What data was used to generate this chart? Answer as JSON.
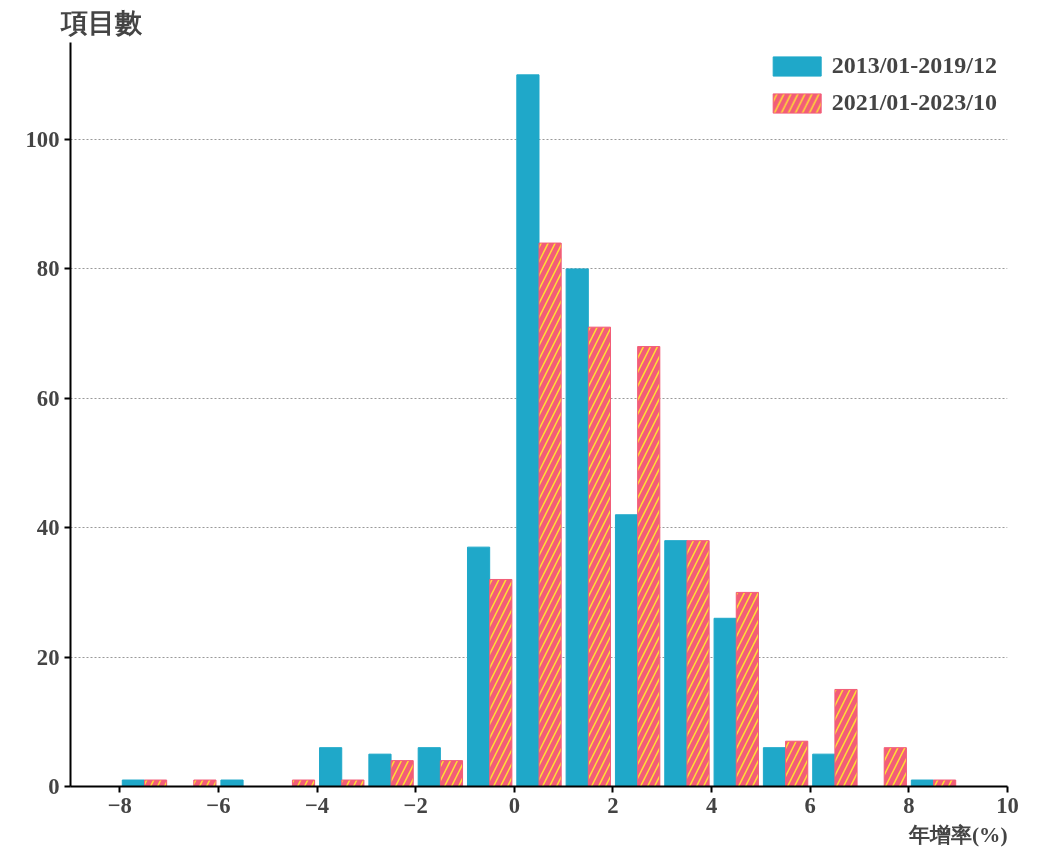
{
  "chart_data": {
    "type": "histogram",
    "xlabel": "年增率(%)",
    "ylabel": "項目數",
    "bins": [
      -8,
      -7,
      -6,
      -5,
      -4,
      -3,
      -2,
      -1,
      0,
      1,
      2,
      3,
      4,
      5,
      6,
      7,
      8,
      9
    ],
    "series": [
      {
        "name": "2013/01-2019/12",
        "color": "#1fa8c9",
        "values": [
          1,
          0,
          1,
          0,
          6,
          5,
          6,
          37,
          110,
          80,
          42,
          38,
          26,
          6,
          5,
          0,
          1
        ]
      },
      {
        "name": "2021/01-2023/10",
        "color": "#f25d78",
        "values": [
          1,
          1,
          0,
          1,
          1,
          4,
          4,
          32,
          84,
          71,
          68,
          38,
          30,
          7,
          15,
          6,
          1
        ]
      }
    ],
    "xlim": [
      -9,
      10
    ],
    "ylim": [
      0,
      115
    ],
    "xticks": [
      -8,
      -6,
      -4,
      -2,
      0,
      2,
      4,
      6,
      8,
      10
    ],
    "yticks": [
      0,
      20,
      40,
      60,
      80,
      100
    ],
    "grid": "y",
    "legend": "top right"
  }
}
